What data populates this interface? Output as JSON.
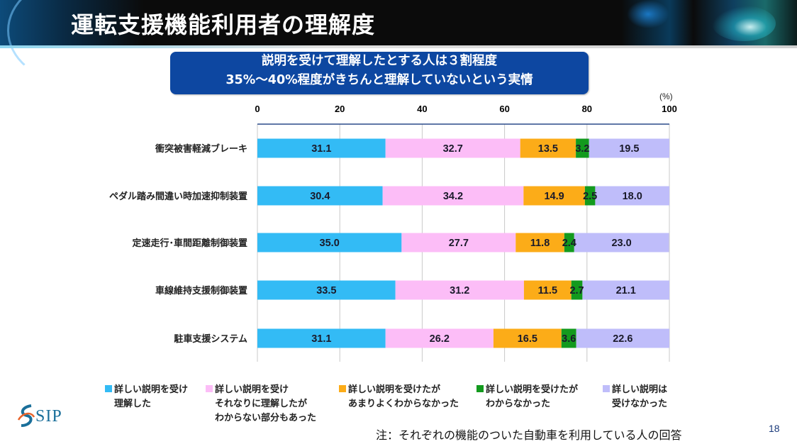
{
  "header": {
    "title": "運転支援機能利用者の理解度"
  },
  "callout": {
    "line1": "説明を受けて理解したとする人は３割程度",
    "line2": "35%～40%程度がきちんと理解していないという実情"
  },
  "chart_data": {
    "type": "bar",
    "orientation": "horizontal",
    "stacked": true,
    "title": "",
    "unit_label": "(%)",
    "xlim": [
      0,
      100
    ],
    "x_ticks": [
      "0",
      "20",
      "40",
      "60",
      "80",
      "100"
    ],
    "x_tick_values": [
      0,
      20,
      40,
      60,
      80,
      100
    ],
    "grid": true,
    "categories": [
      "衝突被害軽減ブレーキ",
      "ペダル踏み間違い時加速抑制装置",
      "定速走行･車間距離制御装置",
      "車線維持支援制御装置",
      "駐車支援システム"
    ],
    "series": [
      {
        "name": "詳しい説明を受け理解した",
        "color": "#33bbf5",
        "values": [
          31.1,
          30.4,
          35.0,
          33.5,
          31.1
        ],
        "labels": [
          "31.1",
          "30.4",
          "35.0",
          "33.5",
          "31.1"
        ]
      },
      {
        "name": "詳しい説明を受けそれなりに理解したがわからない部分もあった",
        "color": "#fcbdf7",
        "values": [
          32.7,
          34.2,
          27.7,
          31.2,
          26.2
        ],
        "labels": [
          "32.7",
          "34.2",
          "27.7",
          "31.2",
          "26.2"
        ]
      },
      {
        "name": "詳しい説明を受けたがあまりよくわからなかった",
        "color": "#fcac18",
        "values": [
          13.5,
          14.9,
          11.8,
          11.5,
          16.5
        ],
        "labels": [
          "13.5",
          "14.9",
          "11.8",
          "11.5",
          "16.5"
        ]
      },
      {
        "name": "詳しい説明を受けたがわからなかった",
        "color": "#139a1e",
        "values": [
          3.2,
          2.5,
          2.4,
          2.7,
          3.6
        ],
        "labels": [
          "3.2",
          "2.5",
          "2.4",
          "2.7",
          "3.6"
        ]
      },
      {
        "name": "詳しい説明は受けなかった",
        "color": "#bfbdfa",
        "values": [
          19.5,
          18.0,
          23.0,
          21.1,
          22.6
        ],
        "labels": [
          "19.5",
          "18.0",
          "23.0",
          "21.1",
          "22.6"
        ]
      }
    ],
    "legend_position": "bottom"
  },
  "legend": [
    {
      "lines": [
        "詳しい説明を受け",
        "理解した"
      ],
      "color": "#33bbf5"
    },
    {
      "lines": [
        "詳しい説明を受け",
        "それなりに理解したが",
        "わからない部分もあった"
      ],
      "color": "#fcbdf7"
    },
    {
      "lines": [
        "詳しい説明を受けたが",
        "あまりよくわからなかった"
      ],
      "color": "#fcac18"
    },
    {
      "lines": [
        "詳しい説明を受けたが",
        "わからなかった"
      ],
      "color": "#139a1e"
    },
    {
      "lines": [
        "詳しい説明は",
        "受けなかった"
      ],
      "color": "#bfbdfa"
    }
  ],
  "footer": {
    "note": "注：それぞれの機能のついた自動車を利用している人の回答",
    "page_number": "18",
    "logo_text": "SIP"
  }
}
